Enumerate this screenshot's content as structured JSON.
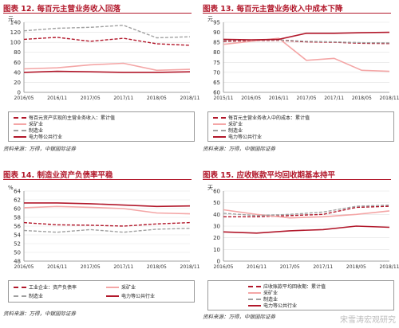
{
  "panels": [
    {
      "title": "图表 12. 每百元主营业务收入回落",
      "source": "资料来源：万得，中银国际证券",
      "legend": [
        {
          "label": "每百元资产实现的主营业务收入：累计值"
        },
        {
          "label": "采矿业"
        },
        {
          "label": "制造业"
        },
        {
          "label": "电力等公共行业"
        }
      ]
    },
    {
      "title": "图表 13. 每百元主营业务收入中成本下降",
      "source": "资料来源：万得，中银国际证券",
      "legend": [
        {
          "label": "每百元主营业务收入中的成本：累计值"
        },
        {
          "label": "采矿业"
        },
        {
          "label": "制造业"
        },
        {
          "label": "电力等公共行业"
        }
      ]
    },
    {
      "title": "图表 14. 制造业资产负债率平稳",
      "source": "资料来源：万得，中银国际证券",
      "legend": [
        {
          "label": "工业企业：资产负债率"
        },
        {
          "label": "采矿业"
        },
        {
          "label": "制造业"
        },
        {
          "label": "电力等公共行业"
        }
      ]
    },
    {
      "title": "图表 15. 应收账款平均回收期基本持平",
      "source": "资料来源：万得，中银国际证券",
      "legend": [
        {
          "label": "应收账款平均回收期：累计值"
        },
        {
          "label": "采矿业"
        },
        {
          "label": "制造业"
        },
        {
          "label": "电力等公共行业"
        }
      ]
    }
  ],
  "watermark": "宋雪涛宏观研究",
  "colors": {
    "total": "#b2182b",
    "mining": "#f4a6a6",
    "manufacturing": "#a0a0a0",
    "utilities": "#b2182b",
    "title": "#b2182b"
  },
  "chart_data": [
    {
      "type": "line",
      "ylabel": "元",
      "ylim": [
        0,
        140
      ],
      "yticks": [
        0,
        20,
        40,
        60,
        80,
        100,
        120,
        140
      ],
      "x": [
        "2016/05",
        "2016/11",
        "2017/05",
        "2017/11",
        "2018/05",
        "2018/11"
      ],
      "xlabels": [
        "2016/05",
        "2016/11",
        "2017/05",
        "2017/11",
        "2018/05",
        "2018/11"
      ],
      "series": [
        {
          "name": "每百元资产实现的主营业务收入：累计值",
          "style": "dashed",
          "key": "total",
          "values": [
            106,
            110,
            102,
            108,
            97,
            94
          ]
        },
        {
          "name": "采矿业",
          "style": "solid",
          "key": "mining",
          "values": [
            47,
            49,
            55,
            58,
            44,
            46
          ]
        },
        {
          "name": "制造业",
          "style": "dashed",
          "key": "manufacturing",
          "values": [
            123,
            128,
            130,
            134,
            109,
            111
          ]
        },
        {
          "name": "电力等公共行业",
          "style": "solid",
          "key": "utilities",
          "values": [
            40,
            42,
            41,
            40,
            40,
            41
          ]
        }
      ]
    },
    {
      "type": "line",
      "ylabel": "元",
      "ylim": [
        60,
        95
      ],
      "yticks": [
        60,
        65,
        70,
        75,
        80,
        85,
        90,
        95
      ],
      "x": [
        "2015/11",
        "2016/05",
        "2016/11",
        "2017/05",
        "2017/11",
        "2018/05",
        "2018/11"
      ],
      "xlabels": [
        "2015/11",
        "2016/05",
        "2016/11",
        "2017/05",
        "2017/11",
        "2018/05",
        "2018/11"
      ],
      "series": [
        {
          "name": "每百元主营业务收入中的成本：累计值",
          "style": "dashed",
          "key": "total",
          "values": [
            85.5,
            85.8,
            86,
            85.2,
            85,
            84.5,
            84.4
          ]
        },
        {
          "name": "采矿业",
          "style": "solid",
          "key": "mining",
          "values": [
            84,
            85.5,
            87,
            76,
            77,
            71,
            70.5
          ]
        },
        {
          "name": "制造业",
          "style": "dashed",
          "key": "manufacturing",
          "values": [
            86,
            86,
            86.2,
            85.5,
            85.2,
            84.8,
            84.7
          ]
        },
        {
          "name": "电力等公共行业",
          "style": "solid",
          "key": "utilities",
          "values": [
            86.5,
            86.2,
            86.5,
            89.5,
            89.5,
            89.8,
            90
          ]
        }
      ]
    },
    {
      "type": "line",
      "ylabel": "%",
      "ylim": [
        48,
        64
      ],
      "yticks": [
        48,
        50,
        52,
        54,
        56,
        58,
        60,
        62,
        64
      ],
      "x": [
        "2016/05",
        "2016/11",
        "2017/05",
        "2017/11",
        "2018/05",
        "2018/11"
      ],
      "xlabels": [
        "2016/05",
        "2016/11",
        "2017/05",
        "2017/11",
        "2018/05",
        "2018/11"
      ],
      "series": [
        {
          "name": "工业企业：资产负债率",
          "style": "dashed",
          "key": "total",
          "values": [
            56.8,
            56.3,
            56.2,
            56.0,
            56.5,
            56.8
          ]
        },
        {
          "name": "采矿业",
          "style": "solid",
          "key": "mining",
          "values": [
            60.2,
            60.5,
            60.3,
            60.0,
            59.0,
            58.8
          ]
        },
        {
          "name": "制造业",
          "style": "dashed",
          "key": "manufacturing",
          "values": [
            55.0,
            54.6,
            55.2,
            54.6,
            55.3,
            55.5
          ]
        },
        {
          "name": "电力等公共行业",
          "style": "solid",
          "key": "utilities",
          "values": [
            61.3,
            61.3,
            61.1,
            60.8,
            60.5,
            60.6
          ]
        }
      ]
    },
    {
      "type": "line",
      "ylabel": "天",
      "ylim": [
        0,
        60
      ],
      "yticks": [
        0,
        10,
        20,
        30,
        40,
        50,
        60
      ],
      "x": [
        "2016/05",
        "2016/11",
        "2017/05",
        "2017/11",
        "2018/05",
        "2018/11"
      ],
      "xlabels": [
        "2016/05",
        "2016/11",
        "2017/05",
        "2017/11",
        "2018/05",
        "2018/11"
      ],
      "series": [
        {
          "name": "应收账款平均回收期：累计值",
          "style": "dashed",
          "key": "total",
          "values": [
            38,
            38,
            39,
            40,
            46,
            47
          ]
        },
        {
          "name": "采矿业",
          "style": "solid",
          "key": "mining",
          "values": [
            44,
            40,
            37,
            38,
            40,
            43
          ]
        },
        {
          "name": "制造业",
          "style": "dashed",
          "key": "manufacturing",
          "values": [
            41,
            39,
            40,
            42,
            47,
            48
          ]
        },
        {
          "name": "电力等公共行业",
          "style": "solid",
          "key": "utilities",
          "values": [
            25,
            24,
            26,
            27,
            30,
            29
          ]
        }
      ]
    }
  ]
}
